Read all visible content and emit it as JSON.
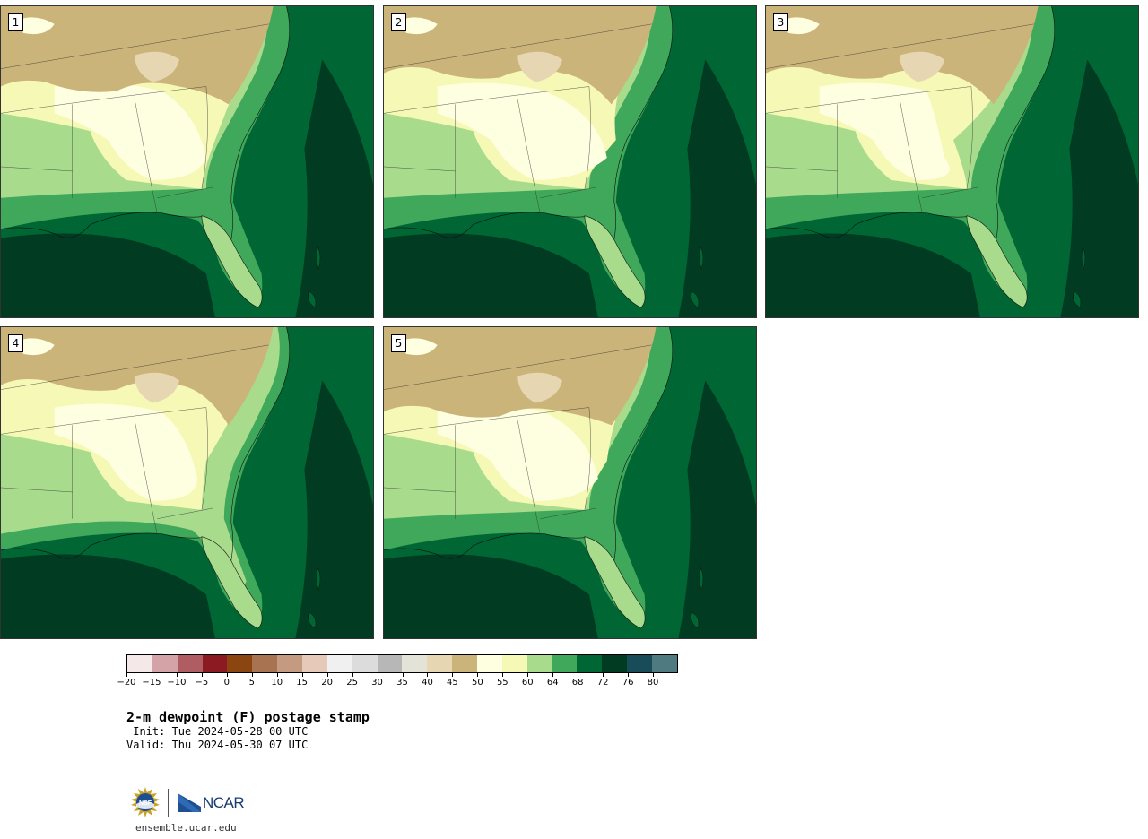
{
  "panels": [
    {
      "label": "1"
    },
    {
      "label": "2"
    },
    {
      "label": "3"
    },
    {
      "label": "4"
    },
    {
      "label": "5"
    }
  ],
  "colorbar": {
    "colors": [
      "#f4e8e8",
      "#d4a3a8",
      "#b05c63",
      "#8b1a22",
      "#8b4510",
      "#a87350",
      "#c49a80",
      "#e6c9b8",
      "#f0f0f0",
      "#dcdcdc",
      "#b7b7b7",
      "#e3e3d8",
      "#e7d6b2",
      "#cbb47a",
      "#fefee0",
      "#f6f9b5",
      "#a8dc8c",
      "#3fa85a",
      "#006633",
      "#003b22",
      "#174c58",
      "#4f7b80"
    ],
    "tick_labels": [
      "−20",
      "−15",
      "−10",
      "−5",
      "0",
      "5",
      "10",
      "15",
      "20",
      "25",
      "30",
      "35",
      "40",
      "45",
      "50",
      "55",
      "60",
      "64",
      "68",
      "72",
      "76",
      "80"
    ]
  },
  "title": "2-m dewpoint (F) postage stamp",
  "init_line": " Init: Tue 2024-05-28 00 UTC",
  "valid_line": "Valid: Thu 2024-05-30 07 UTC",
  "logo": {
    "ncar_text": "NCAR",
    "nsf_text": "NSF"
  },
  "site": "ensemble.ucar.edu"
}
